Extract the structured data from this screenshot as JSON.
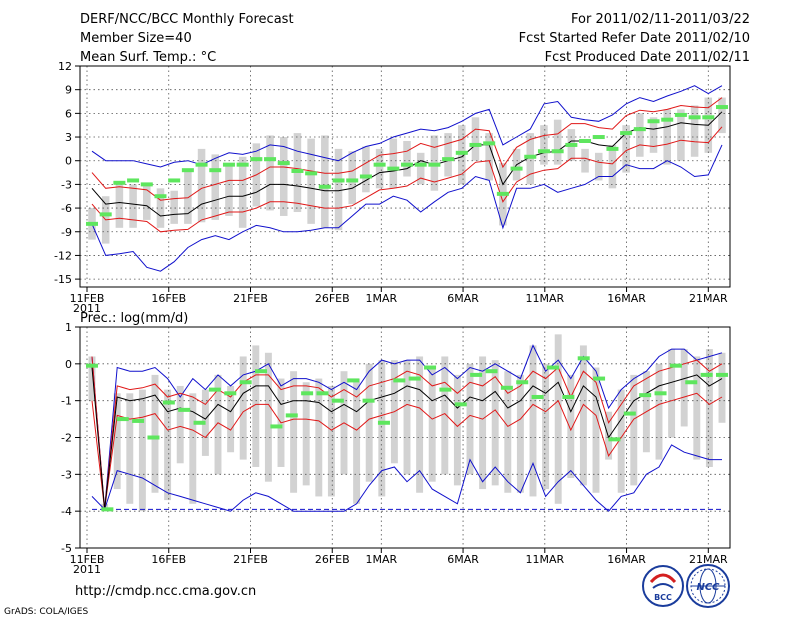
{
  "header": {
    "title": "DERF/NCC/BCC Monthly Forecast",
    "member_size": "Member Size=40",
    "variable": "Mean Surf. Temp.: °C",
    "period": "For 2011/02/11-2011/03/22",
    "started": "Fcst Started Refer Date 2011/02/10",
    "produced": "Fcst Produced Date 2011/02/11"
  },
  "footer": {
    "url": "http://cmdp.ncc.cma.gov.cn",
    "grads": "GrADS: COLA/IGES",
    "logo_bcc": "BCC",
    "logo_ncc": "NCC"
  },
  "colors": {
    "box": "#d2d2d2",
    "obs": "#5ee65e",
    "mean": "#000000",
    "envelope": "#e01818",
    "extreme": "#1010cc",
    "grid": "#555555"
  },
  "chart_data": [
    {
      "type": "box",
      "title": "Mean Surf. Temp.: °C",
      "x_tick_labels": [
        "11FEB",
        "16FEB",
        "21FEB",
        "26FEB",
        "1MAR",
        "6MAR",
        "11MAR",
        "16MAR",
        "21MAR"
      ],
      "x_tick_year": "2011",
      "x_tick_days": [
        0,
        5,
        10,
        15,
        18,
        23,
        28,
        33,
        38
      ],
      "ylim": [
        -16,
        12
      ],
      "y_ticks": [
        -15,
        -12,
        -9,
        -6,
        -3,
        0,
        3,
        6,
        9,
        12
      ],
      "series": [
        {
          "name": "mean",
          "values": [
            -3.5,
            -5.5,
            -5.3,
            -5.5,
            -5.7,
            -7,
            -6.8,
            -6.7,
            -5.5,
            -5,
            -4.5,
            -4.5,
            -4,
            -3,
            -3,
            -3.2,
            -3.5,
            -3.8,
            -3.8,
            -3.5,
            -2.5,
            -1.5,
            -1.3,
            -1,
            0,
            -0.5,
            0,
            0.5,
            2,
            2,
            -3,
            -0.5,
            0.5,
            1,
            1.2,
            2.5,
            2.5,
            2,
            1.8,
            3.5,
            4.2,
            4,
            4.3,
            4.8,
            4.6,
            4.5,
            6.2
          ]
        },
        {
          "name": "upper",
          "values": [
            -1.5,
            -3.5,
            -3.3,
            -3.5,
            -3.7,
            -5,
            -4.8,
            -4.7,
            -3.5,
            -3,
            -2.5,
            -2.5,
            -1.8,
            -0.8,
            -0.8,
            -1,
            -1.3,
            -1.6,
            -1.6,
            -1.3,
            -0.3,
            0.7,
            0.9,
            1.2,
            2.2,
            1.7,
            2.2,
            2.7,
            4,
            3.8,
            -0.8,
            1.7,
            2.7,
            3.2,
            3.4,
            4.7,
            4.7,
            4.2,
            4,
            5.7,
            6.4,
            6.2,
            6.5,
            7,
            6.8,
            6.7,
            8
          ]
        },
        {
          "name": "lower",
          "values": [
            -5.5,
            -7.5,
            -7.3,
            -7.5,
            -7.7,
            -9,
            -8.8,
            -8.7,
            -7.5,
            -7,
            -6.5,
            -6.5,
            -6,
            -5.2,
            -5.2,
            -5.4,
            -5.7,
            -6,
            -6,
            -5.7,
            -4.7,
            -3.7,
            -3.5,
            -3.2,
            -2.2,
            -2.7,
            -2.2,
            -1.7,
            -0.2,
            0,
            -5.2,
            -2.7,
            -1.7,
            -1.2,
            -1,
            0.3,
            0.3,
            -0.2,
            -0.4,
            1.3,
            2,
            1.8,
            2.1,
            2.6,
            2.4,
            2.3,
            4.3
          ]
        },
        {
          "name": "max",
          "values": [
            1.2,
            0,
            0,
            0,
            -0.4,
            -0.8,
            -0.2,
            0,
            -0.5,
            0.3,
            1,
            0.8,
            1.2,
            2,
            1.8,
            1.2,
            0.8,
            0.4,
            0,
            1,
            1.8,
            2.2,
            3,
            3.5,
            4,
            3.8,
            4.2,
            5,
            6,
            6.5,
            2,
            3,
            4,
            7.2,
            7.5,
            5.5,
            5.2,
            5,
            5.8,
            7.2,
            8,
            7.5,
            8.2,
            8.8,
            9.5,
            8.5,
            9.5
          ]
        },
        {
          "name": "min",
          "values": [
            -8,
            -12,
            -11.8,
            -11.5,
            -13.5,
            -14,
            -12.8,
            -11,
            -10,
            -9.5,
            -10,
            -9,
            -8.2,
            -8.5,
            -9,
            -9,
            -8.8,
            -8.5,
            -8.5,
            -7,
            -5.5,
            -5.5,
            -4.5,
            -5,
            -6.5,
            -5.2,
            -4,
            -3.5,
            -2,
            -2.5,
            -8.5,
            -3.5,
            -3.5,
            -3,
            -4,
            -3.5,
            -3,
            -2,
            -2,
            -0.5,
            -1,
            -1,
            0,
            -0.8,
            -2,
            -1.8,
            2
          ]
        },
        {
          "name": "box_top",
          "values": [
            -6,
            -4.5,
            -2.8,
            -3,
            -3,
            -3.5,
            -3.8,
            -1,
            1.5,
            0.8,
            -0.5,
            0.5,
            2.2,
            3.2,
            3,
            3.5,
            2.8,
            3.2,
            1.5,
            1.2,
            1.8,
            1.5,
            2.8,
            2.5,
            1,
            3.2,
            3.5,
            4.5,
            5.5,
            3.5,
            -0.3,
            1.5,
            3.5,
            4.5,
            5.2,
            4,
            1.5,
            1,
            2,
            4.5,
            6,
            5.5,
            6.5,
            6.5,
            7,
            8,
            8
          ]
        },
        {
          "name": "box_bottom",
          "values": [
            -10,
            -10.5,
            -8.5,
            -8.5,
            -7.5,
            -8.5,
            -8,
            -8,
            -7.8,
            -7.5,
            -7,
            -8.5,
            -5.8,
            -6.3,
            -7,
            -6.5,
            -8,
            -8.5,
            -8.8,
            -5.5,
            -4,
            -3.5,
            -3.5,
            -2,
            -3,
            -3.8,
            -2,
            -3,
            0,
            -2.5,
            -8.2,
            -2.5,
            -3,
            -0.5,
            -0.5,
            0,
            -1.5,
            -2.5,
            -3.5,
            -1.5,
            0.5,
            1,
            -0.5,
            0,
            0.5,
            1,
            3.5
          ]
        },
        {
          "name": "observed",
          "values": [
            -8,
            -6.8,
            -2.8,
            -2.5,
            -3,
            -4.5,
            -2.5,
            -1.2,
            -0.5,
            -1.2,
            -0.5,
            -0.5,
            0.2,
            0.2,
            -0.3,
            -1.3,
            -1.6,
            -3.3,
            -2.5,
            -2.5,
            -2,
            -0.5,
            -1,
            -0.5,
            -0.5,
            -0.5,
            0.2,
            1,
            2,
            2.2,
            -4.2,
            -1,
            0.5,
            1.2,
            1.2,
            2,
            2.5,
            3,
            1.5,
            3.5,
            4,
            5,
            5.2,
            5.8,
            5.5,
            5.5,
            6.8
          ]
        }
      ]
    },
    {
      "type": "box",
      "title": "Prec.: log(mm/d)",
      "x_tick_labels": [
        "11FEB",
        "16FEB",
        "21FEB",
        "26FEB",
        "1MAR",
        "6MAR",
        "11MAR",
        "16MAR",
        "21MAR"
      ],
      "x_tick_year": "2011",
      "x_tick_days": [
        0,
        5,
        10,
        15,
        18,
        23,
        28,
        33,
        38
      ],
      "ylim": [
        -5,
        1
      ],
      "y_ticks": [
        -5,
        -4,
        -3,
        -2,
        -1,
        0,
        1
      ],
      "series": [
        {
          "name": "mean",
          "values": [
            -0.1,
            -3.95,
            -0.9,
            -1,
            -0.95,
            -0.85,
            -1.3,
            -1.2,
            -1.3,
            -1.5,
            -1.1,
            -1.3,
            -0.8,
            -0.6,
            -0.6,
            -1.1,
            -1,
            -1,
            -1.05,
            -1.3,
            -1.1,
            -1.3,
            -1,
            -0.9,
            -0.8,
            -0.6,
            -0.7,
            -1,
            -0.85,
            -1.2,
            -0.9,
            -1,
            -0.75,
            -1.2,
            -1,
            -0.6,
            -0.8,
            -0.5,
            -1.3,
            -0.6,
            -0.9,
            -2,
            -1.5,
            -1,
            -0.8,
            -0.6,
            -0.5,
            -0.4,
            -0.3,
            -0.6,
            -0.4
          ]
        },
        {
          "name": "upper",
          "values": [
            0.2,
            -3.95,
            -0.6,
            -0.7,
            -0.65,
            -0.55,
            -0.9,
            -0.8,
            -0.9,
            -1.1,
            -0.7,
            -0.9,
            -0.5,
            -0.3,
            -0.3,
            -0.7,
            -0.6,
            -0.6,
            -0.65,
            -0.9,
            -0.7,
            -0.9,
            -0.6,
            -0.5,
            -0.4,
            -0.2,
            -0.3,
            -0.6,
            -0.5,
            -0.8,
            -0.5,
            -0.6,
            -0.35,
            -0.8,
            -0.6,
            -0.2,
            -0.4,
            -0.1,
            -0.9,
            -0.2,
            -0.5,
            -1.6,
            -1.1,
            -0.6,
            -0.4,
            -0.2,
            -0.1,
            0,
            0.1,
            -0.2,
            0
          ]
        },
        {
          "name": "lower",
          "values": [
            -1,
            -3.95,
            -1.4,
            -1.5,
            -1.45,
            -1.35,
            -1.8,
            -1.7,
            -1.8,
            -2,
            -1.6,
            -1.8,
            -1.3,
            -1.1,
            -1.1,
            -1.6,
            -1.5,
            -1.5,
            -1.55,
            -1.8,
            -1.6,
            -1.8,
            -1.5,
            -1.4,
            -1.3,
            -1.1,
            -1.2,
            -1.5,
            -1.35,
            -1.7,
            -1.4,
            -1.5,
            -1.25,
            -1.7,
            -1.5,
            -1.1,
            -1.3,
            -1,
            -1.8,
            -1.1,
            -1.4,
            -2.5,
            -2,
            -1.5,
            -1.3,
            -1.1,
            -1,
            -0.9,
            -0.8,
            -1.1,
            -0.9
          ]
        },
        {
          "name": "max",
          "values": [
            0.2,
            -3.95,
            -0.1,
            -0.2,
            -0.2,
            -0.1,
            -0.4,
            -0.9,
            -0.4,
            -0.7,
            -0.3,
            -0.6,
            -0.3,
            -0.2,
            0,
            -0.6,
            -0.4,
            -0.4,
            -0.5,
            -0.7,
            -0.5,
            -0.7,
            -0.2,
            0.1,
            0,
            0.1,
            0.1,
            -0.3,
            -0.1,
            -0.4,
            -0.1,
            -0.2,
            0,
            -0.2,
            -0.4,
            0.5,
            -0.2,
            0.1,
            -0.4,
            0.2,
            -0.2,
            -1.2,
            -0.7,
            -0.4,
            -0.2,
            0.2,
            0.4,
            0.4,
            0.1,
            0.2,
            0.3
          ]
        },
        {
          "name": "min",
          "values": [
            -3.6,
            -3.95,
            -2.9,
            -3,
            -3.1,
            -3.3,
            -3.5,
            -3.6,
            -3.7,
            -3.8,
            -3.9,
            -4,
            -3.7,
            -3.5,
            -3.6,
            -3.8,
            -4,
            -4,
            -4,
            -4,
            -4,
            -3.8,
            -3.3,
            -2.9,
            -2.8,
            -3.2,
            -2.9,
            -3.4,
            -3.6,
            -3.8,
            -2.6,
            -3.2,
            -2.8,
            -3.2,
            -3.5,
            -2.7,
            -3.6,
            -3.2,
            -2.9,
            -3.3,
            -3.7,
            -4,
            -3.6,
            -3.5,
            -3,
            -2.8,
            -2.2,
            -2.4,
            -2.5,
            -2.6,
            -2.6
          ]
        },
        {
          "name": "box_top",
          "values": [
            0.2,
            -3.8,
            -0.8,
            -0.8,
            -0.7,
            -0.3,
            -0.7,
            -0.6,
            -0.8,
            -0.7,
            -0.3,
            -0.6,
            0.2,
            0.5,
            0.3,
            -0.4,
            -0.2,
            -0.5,
            -0.4,
            -0.6,
            -0.2,
            -0.4,
            0,
            0.1,
            0.1,
            0.1,
            0.2,
            -0.1,
            0.2,
            -0.3,
            0,
            0.2,
            0.1,
            -0.2,
            -0.3,
            0.5,
            0,
            0.8,
            -0.3,
            0.5,
            -0.1,
            -1.3,
            -0.7,
            -0.3,
            -0.2,
            0,
            0.4,
            0.4,
            0.2,
            0.4,
            0.3
          ]
        },
        {
          "name": "box_bottom",
          "values": [
            -1,
            -3.95,
            -3.4,
            -3.8,
            -4,
            -3.5,
            -3.7,
            -2.7,
            -3.8,
            -2.5,
            -3,
            -2.4,
            -2.6,
            -2.8,
            -3.2,
            -2.8,
            -3.5,
            -3.3,
            -3.6,
            -3.6,
            -3,
            -3.8,
            -3.2,
            -3.6,
            -2.7,
            -3,
            -3.5,
            -3.2,
            -3,
            -3.3,
            -3,
            -3.4,
            -3.3,
            -3.5,
            -3.5,
            -3.6,
            -3.4,
            -3.8,
            -3.1,
            -3.3,
            -3.5,
            -2.6,
            -3.5,
            -3.3,
            -2.4,
            -2.6,
            -2,
            -1.7,
            -2.6,
            -2.8,
            -1.6
          ]
        },
        {
          "name": "observed",
          "values": [
            -0.05,
            -3.95,
            -1.5,
            -1.55,
            -2,
            -1.05,
            -1.25,
            -1.6,
            -0.7,
            -0.8,
            -0.5,
            -0.2,
            -1.7,
            -1.4,
            -0.8,
            -0.8,
            -1,
            -0.45,
            -1,
            -1.6,
            -0.45,
            -0.4,
            -0.1,
            -0.7,
            -1.1,
            -0.3,
            -0.2,
            -0.65,
            -0.5,
            -0.9,
            -0.1,
            -0.9,
            0.15,
            -0.4,
            -2.05,
            -1.35,
            -0.85,
            -0.8,
            -0.05,
            -0.5,
            -0.3,
            -0.3
          ]
        }
      ]
    }
  ]
}
